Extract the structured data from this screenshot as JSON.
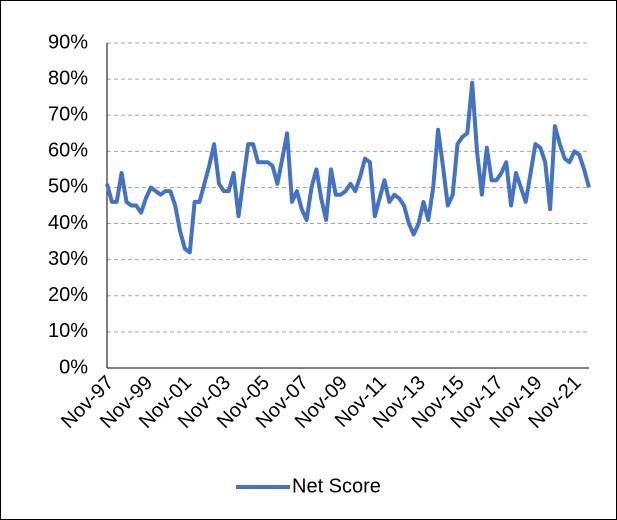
{
  "chart_data": {
    "type": "line",
    "categories": [
      "Nov-97",
      null,
      null,
      null,
      null,
      null,
      null,
      null,
      "Nov-99",
      null,
      null,
      null,
      null,
      null,
      null,
      null,
      "Nov-01",
      null,
      null,
      null,
      null,
      null,
      null,
      null,
      "Nov-03",
      null,
      null,
      null,
      null,
      null,
      null,
      null,
      "Nov-05",
      null,
      null,
      null,
      null,
      null,
      null,
      null,
      "Nov-07",
      null,
      null,
      null,
      null,
      null,
      null,
      null,
      "Nov-09",
      null,
      null,
      null,
      null,
      null,
      null,
      null,
      "Nov-11",
      null,
      null,
      null,
      null,
      null,
      null,
      null,
      "Nov-13",
      null,
      null,
      null,
      null,
      null,
      null,
      null,
      "Nov-15",
      null,
      null,
      null,
      null,
      null,
      null,
      null,
      "Nov-17",
      null,
      null,
      null,
      null,
      null,
      null,
      null,
      "Nov-19",
      null,
      null,
      null,
      null,
      null,
      null,
      null,
      "Nov-21",
      null,
      null,
      null
    ],
    "series": [
      {
        "name": "Net Score",
        "color": "#4472c4",
        "values": [
          51,
          46,
          46,
          54,
          46,
          45,
          45,
          43,
          47,
          50,
          49,
          48,
          49,
          49,
          45,
          38,
          33,
          32,
          46,
          46,
          51,
          56,
          62,
          51,
          49,
          49,
          54,
          42,
          52,
          62,
          62,
          57,
          57,
          57,
          56,
          51,
          58,
          65,
          46,
          49,
          44,
          41,
          50,
          55,
          47,
          41,
          55,
          48,
          48,
          49,
          51,
          49,
          53,
          58,
          57,
          42,
          47,
          52,
          46,
          48,
          47,
          45,
          40,
          37,
          40,
          46,
          41,
          50,
          66,
          56,
          45,
          48,
          62,
          64,
          65,
          79,
          60,
          48,
          61,
          52,
          52,
          54,
          57,
          45,
          54,
          50,
          46,
          54,
          62,
          61,
          57,
          44,
          67,
          62,
          58,
          57,
          60,
          59,
          55,
          50
        ]
      }
    ],
    "ylim": [
      0,
      90
    ],
    "yticks": [
      {
        "value": 0,
        "label": "0%"
      },
      {
        "value": 10,
        "label": "10%"
      },
      {
        "value": 20,
        "label": "20%"
      },
      {
        "value": 30,
        "label": "30%"
      },
      {
        "value": 40,
        "label": "40%"
      },
      {
        "value": 50,
        "label": "50%"
      },
      {
        "value": 60,
        "label": "60%"
      },
      {
        "value": 70,
        "label": "70%"
      },
      {
        "value": 80,
        "label": "80%"
      },
      {
        "value": 90,
        "label": "90%"
      }
    ],
    "grid": true,
    "legend": "bottom"
  }
}
